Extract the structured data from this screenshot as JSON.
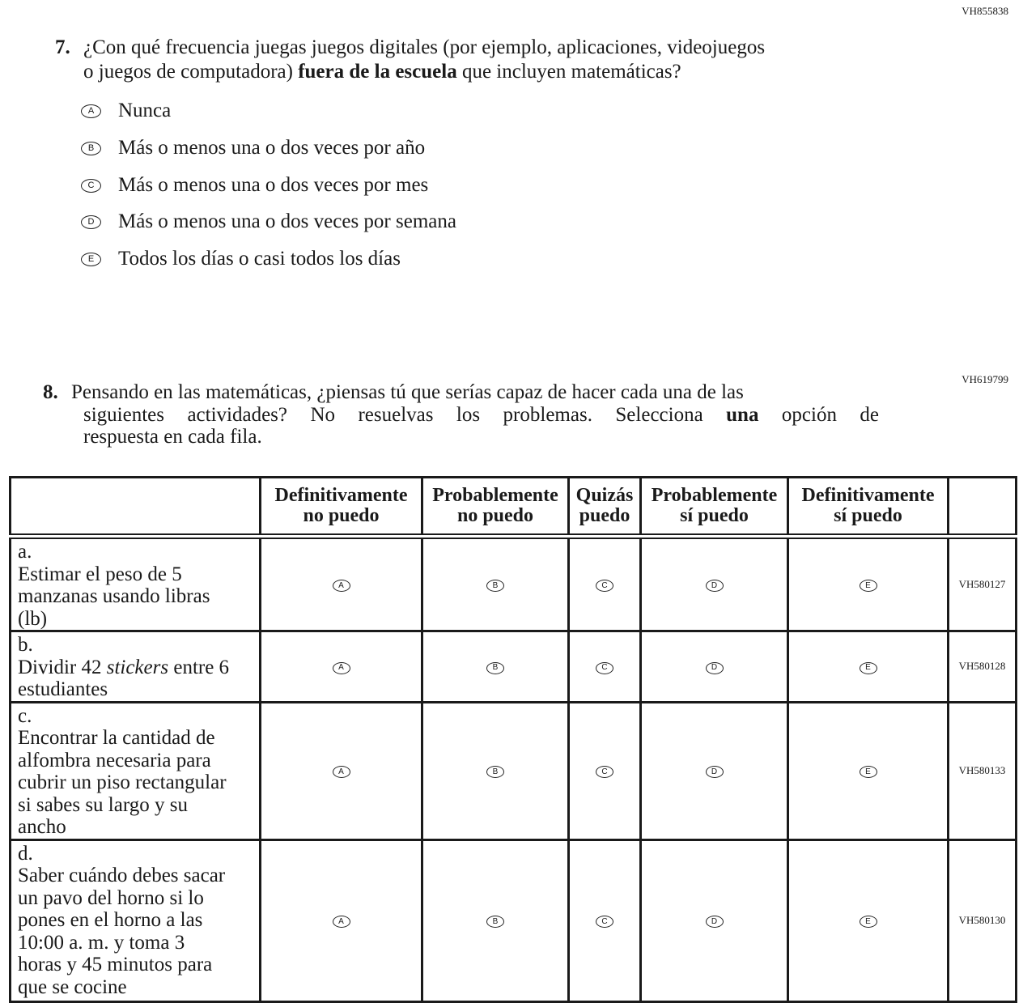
{
  "q7": {
    "code": "VH855838",
    "number": "7.",
    "line1": "¿Con qué frecuencia juegas juegos digitales (por ejemplo, aplicaciones, videojuegos",
    "line2_pre": "o juegos de computadora) ",
    "line2_bold": "fuera de la escuela",
    "line2_post": " que incluyen matemáticas?",
    "options": [
      {
        "letter": "A",
        "text": "Nunca"
      },
      {
        "letter": "B",
        "text": "Más o menos una o dos veces por año"
      },
      {
        "letter": "C",
        "text": "Más o menos una o dos veces por mes"
      },
      {
        "letter": "D",
        "text": "Más o menos una o dos veces por semana"
      },
      {
        "letter": "E",
        "text": "Todos los días o casi todos los días"
      }
    ]
  },
  "q8": {
    "code": "VH619799",
    "number": "8.",
    "line1": "Pensando en las matemáticas, ¿piensas tú que serías capaz de hacer cada una de las",
    "line2_pre": "siguientes actividades? No resuelvas los problemas. Selecciona ",
    "line2_bold": "una",
    "line2_post": " opción de",
    "line3": "respuesta en cada fila.",
    "columns": [
      {
        "l1": "Definitivamente",
        "l2": "no puedo",
        "letter": "A"
      },
      {
        "l1": "Probablemente",
        "l2": "no puedo",
        "letter": "B"
      },
      {
        "l1": "Quizás",
        "l2": "puedo",
        "letter": "C"
      },
      {
        "l1": "Probablemente",
        "l2": "sí puedo",
        "letter": "D"
      },
      {
        "l1": "Definitivamente",
        "l2": "sí puedo",
        "letter": "E"
      }
    ],
    "rows": [
      {
        "label": "a.",
        "text": "Estimar el peso de 5 manzanas usando libras (lb)",
        "code": "VH580127"
      },
      {
        "label": "b.",
        "text_pre": "Dividir 42 ",
        "text_italic": "stickers",
        "text_post": " entre 6 estudiantes",
        "code": "VH580128"
      },
      {
        "label": "c.",
        "text": "Encontrar la cantidad de alfombra necesaria para cubrir un piso rectangular si sabes su largo y su ancho",
        "code": "VH580133"
      },
      {
        "label": "d.",
        "text": "Saber cuándo debes sacar un pavo del horno si lo pones en el horno a las 10:00 a. m. y toma 3 horas y 45 minutos para que se cocine",
        "code": "VH580130"
      }
    ]
  }
}
